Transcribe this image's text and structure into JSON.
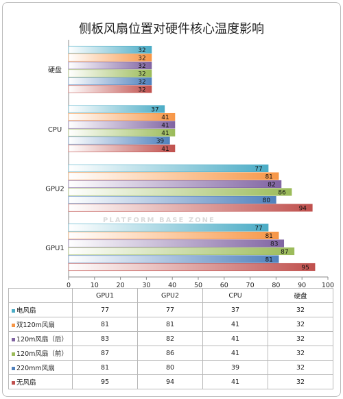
{
  "chart_data": {
    "type": "bar",
    "orientation": "horizontal",
    "title": "侧板风扇位置对硬件核心温度影响",
    "categories": [
      "GPU1",
      "GPU2",
      "CPU",
      "硬盘"
    ],
    "xlim": [
      0,
      100
    ],
    "xticks": [
      0,
      10,
      20,
      30,
      40,
      50,
      60,
      70,
      80,
      90,
      100
    ],
    "grid": false,
    "legend": "table-below",
    "series": [
      {
        "name": "电风扇",
        "color": "#4bacc6",
        "values": [
          77,
          77,
          37,
          32
        ]
      },
      {
        "name": "双120m风扇",
        "color": "#f79646",
        "values": [
          81,
          81,
          41,
          32
        ]
      },
      {
        "name": "120m风扇（后）",
        "color": "#8064a2",
        "values": [
          83,
          82,
          41,
          32
        ]
      },
      {
        "name": "120m风扇（前）",
        "color": "#9bbb59",
        "values": [
          87,
          86,
          41,
          32
        ]
      },
      {
        "name": "220mm风扇",
        "color": "#4f81bd",
        "values": [
          81,
          80,
          39,
          32
        ]
      },
      {
        "name": "无风扇",
        "color": "#c0504d",
        "values": [
          95,
          94,
          41,
          32
        ]
      }
    ]
  },
  "watermark": "PLATFORM BASE ZONE"
}
